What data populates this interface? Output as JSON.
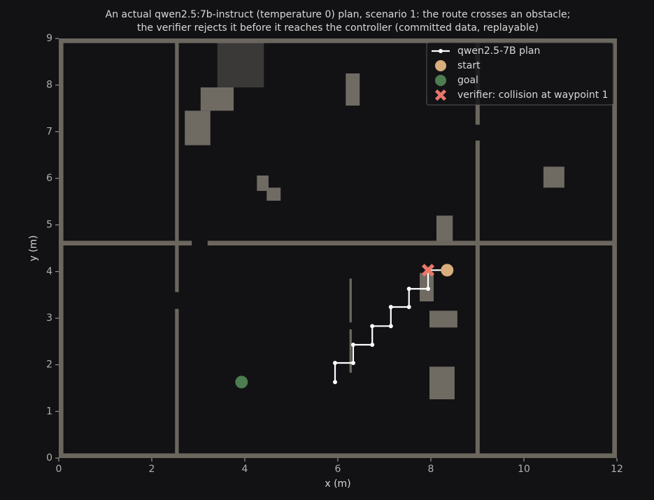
{
  "chart_data": {
    "type": "scatter",
    "title_lines": [
      "An actual qwen2.5:7b-instruct (temperature 0) plan, scenario 1: the route crosses an obstacle;",
      "the verifier rejects it before it reaches the controller (committed data, replayable)"
    ],
    "x_label": "x (m)",
    "y_label": "y (m)",
    "xlim": [
      0,
      12
    ],
    "ylim": [
      0,
      9
    ],
    "xticks": [
      0,
      2,
      4,
      6,
      8,
      10,
      12
    ],
    "yticks": [
      0,
      1,
      2,
      3,
      4,
      5,
      6,
      7,
      8,
      9
    ],
    "legend": "upper right",
    "walls": {
      "color": "#6b675f",
      "rects": [
        [
          0,
          0,
          0.1,
          9
        ],
        [
          11.9,
          0,
          0.1,
          9
        ],
        [
          0,
          0,
          12,
          0.1
        ],
        [
          0,
          8.9,
          12,
          0.1
        ],
        [
          2.5,
          0,
          0.08,
          3.2
        ],
        [
          2.5,
          3.56,
          0.08,
          5.44
        ],
        [
          0,
          4.56,
          2.86,
          0.1
        ],
        [
          3.2,
          4.56,
          8.8,
          0.1
        ],
        [
          8.96,
          0,
          0.09,
          6.81
        ],
        [
          8.96,
          7.15,
          0.09,
          1.85
        ],
        [
          6.25,
          2.91,
          0.05,
          0.94
        ],
        [
          6.25,
          1.83,
          0.05,
          0.93
        ]
      ]
    },
    "obstacles": {
      "color": "#6f6b63",
      "rects": [
        [
          3.05,
          7.45,
          0.71,
          0.5
        ],
        [
          2.71,
          6.71,
          0.55,
          0.74
        ],
        [
          6.17,
          7.56,
          0.3,
          0.69
        ],
        [
          4.26,
          5.73,
          0.25,
          0.33
        ],
        [
          4.47,
          5.52,
          0.3,
          0.28
        ],
        [
          10.42,
          5.8,
          0.45,
          0.45
        ],
        [
          8.12,
          4.65,
          0.35,
          0.55
        ],
        [
          7.76,
          3.36,
          0.3,
          0.61
        ],
        [
          7.97,
          2.8,
          0.6,
          0.36
        ],
        [
          7.97,
          1.26,
          0.54,
          0.7
        ]
      ]
    },
    "dark_obstacles": {
      "color": "#3a3938",
      "rects": [
        [
          3.41,
          7.95,
          1.0,
          0.97
        ]
      ]
    },
    "plan": {
      "name": "qwen2.5-7B plan",
      "color": "#ffffff",
      "x": [
        8.35,
        7.94,
        7.94,
        7.53,
        7.53,
        7.14,
        7.14,
        6.74,
        6.74,
        6.33,
        6.33,
        5.94,
        5.94
      ],
      "y": [
        4.03,
        4.03,
        3.63,
        3.63,
        3.24,
        3.24,
        2.83,
        2.83,
        2.43,
        2.43,
        2.04,
        2.04,
        1.63
      ]
    },
    "points": [
      {
        "name": "start",
        "color": "#d9ad7c",
        "marker": "circle",
        "x": 8.35,
        "y": 4.03
      },
      {
        "name": "goal",
        "color": "#4d7d50",
        "marker": "circle",
        "x": 3.93,
        "y": 1.63
      },
      {
        "name": "verifier: collision at waypoint 1",
        "color": "#e8776a",
        "marker": "x",
        "x": 7.94,
        "y": 4.03
      }
    ]
  }
}
